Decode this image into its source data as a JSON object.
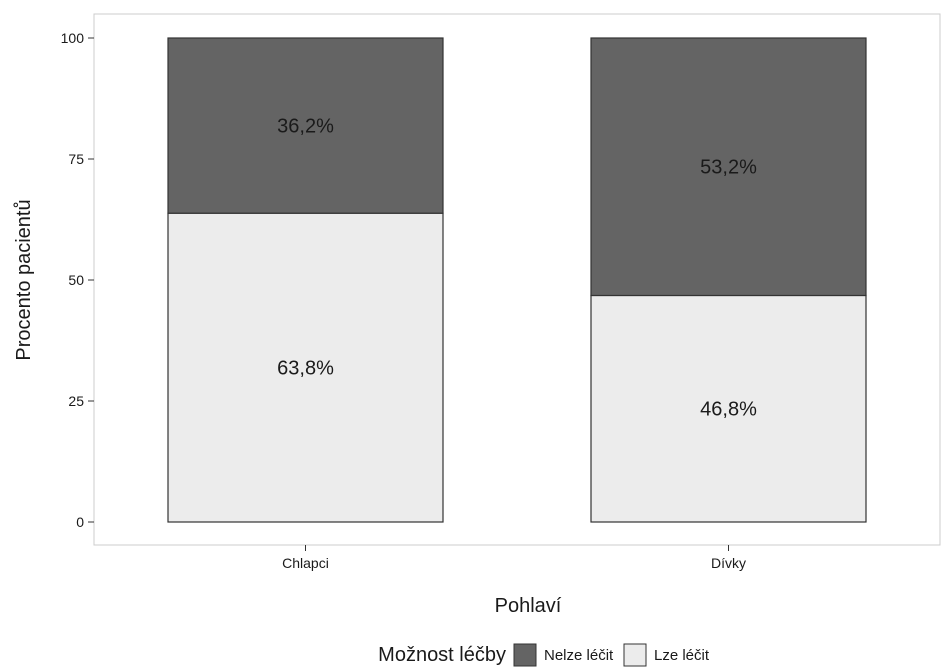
{
  "chart_data": {
    "type": "bar",
    "stacked": "percent",
    "title": "",
    "xlabel": "Pohlaví",
    "ylabel": "Procento pacientů",
    "categories": [
      "Chlapci",
      "Dívky"
    ],
    "ylim": [
      0,
      100
    ],
    "yticks": [
      0,
      25,
      50,
      75,
      100
    ],
    "series": [
      {
        "name": "Lze léčit",
        "values": [
          63.8,
          46.8
        ],
        "labels": [
          "63,8%",
          "46,8%"
        ],
        "color": "#ececec"
      },
      {
        "name": "Nelze léčit",
        "values": [
          36.2,
          53.2
        ],
        "labels": [
          "36,2%",
          "53,2%"
        ],
        "color": "#646464"
      }
    ],
    "legend": {
      "title": "Možnost léčby",
      "position": "bottom",
      "entries": [
        "Nelze léčit",
        "Lze léčit"
      ]
    },
    "grid": false,
    "panel_border": true
  }
}
